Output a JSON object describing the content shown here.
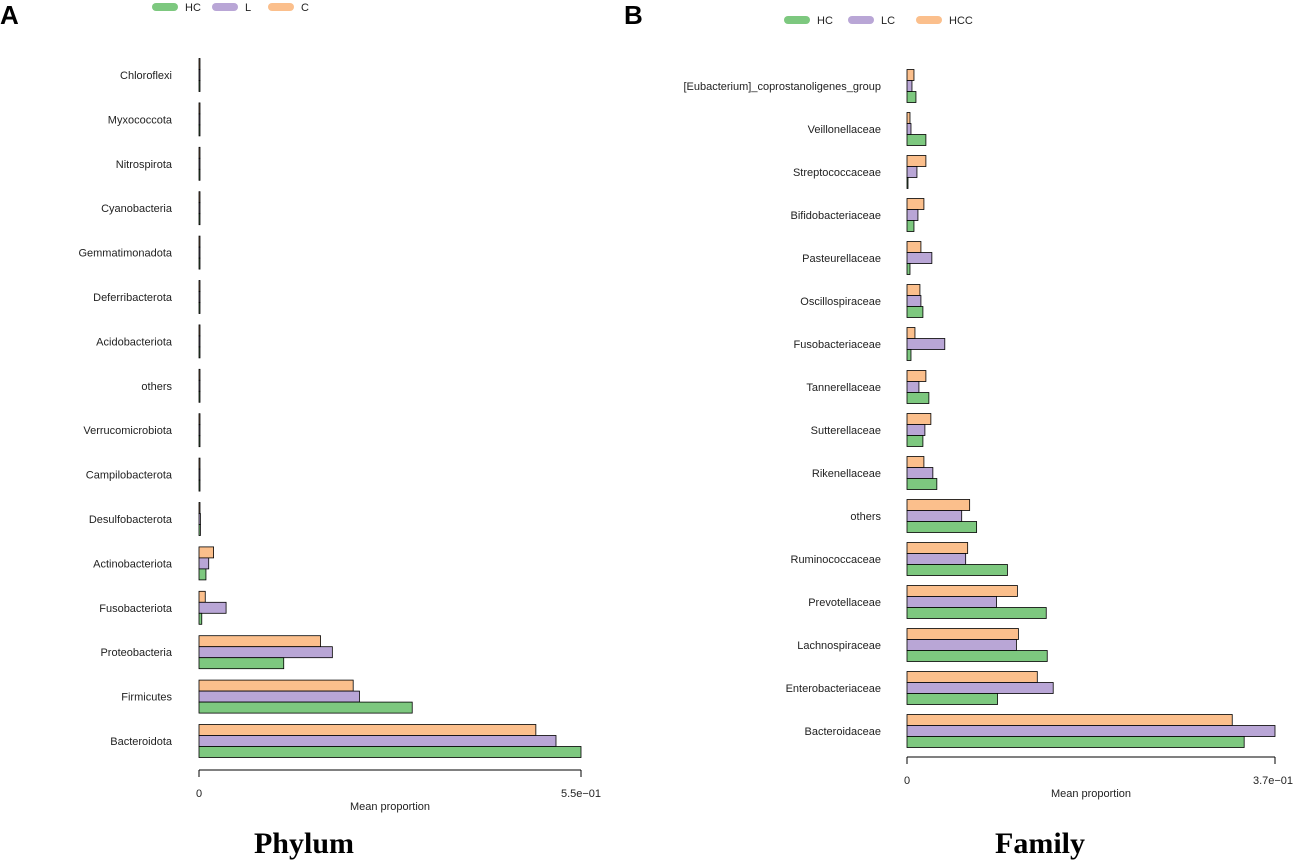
{
  "colors": {
    "c1": "#7dc87f",
    "c2": "#b9a6d6",
    "c3": "#fbbf8c",
    "axis": "#000000"
  },
  "chart_data": [
    {
      "type": "bar",
      "orientation": "horizontal",
      "panel_label": "A",
      "subtitle": "Phylum",
      "xlabel": "Mean proportion",
      "tick_labels": [
        "0",
        "5.5e−01"
      ],
      "xlim": [
        0,
        0.55
      ],
      "legend_position": "top",
      "series": [
        {
          "name": "HC",
          "color_key": "c1"
        },
        {
          "name": "L",
          "color_key": "c2"
        },
        {
          "name": "C",
          "color_key": "c3"
        }
      ],
      "categories": [
        "Chloroflexi",
        "Myxococcota",
        "Nitrospirota",
        "Cyanobacteria",
        "Gemmatimonadota",
        "Deferribacterota",
        "Acidobacteriota",
        "others",
        "Verrucomicrobiota",
        "Campilobacterota",
        "Desulfobacterota",
        "Actinobacteriota",
        "Fusobacteriota",
        "Proteobacteria",
        "Firmicutes",
        "Bacteroidota"
      ],
      "values": {
        "HC": [
          0.0001,
          0.0001,
          0.0001,
          0.0001,
          0.0001,
          0.0001,
          0.0001,
          0.0002,
          0.0003,
          0.0008,
          0.002,
          0.01,
          0.004,
          0.122,
          0.307,
          0.55
        ],
        "L": [
          0.0001,
          0.0001,
          0.0001,
          0.0001,
          0.0001,
          0.0001,
          0.0001,
          0.0002,
          0.0003,
          0.0008,
          0.002,
          0.014,
          0.039,
          0.192,
          0.231,
          0.514
        ],
        "C": [
          0.0001,
          0.0001,
          0.0001,
          0.0001,
          0.0001,
          0.0001,
          0.0001,
          0.0002,
          0.0003,
          0.0006,
          0.001,
          0.021,
          0.009,
          0.175,
          0.222,
          0.485
        ]
      }
    },
    {
      "type": "bar",
      "orientation": "horizontal",
      "panel_label": "B",
      "subtitle": "Family",
      "xlabel": "Mean proportion",
      "tick_labels": [
        "0",
        "3.7e−01"
      ],
      "xlim": [
        0,
        0.37
      ],
      "legend_position": "top",
      "series": [
        {
          "name": "HC",
          "color_key": "c1"
        },
        {
          "name": "LC",
          "color_key": "c2"
        },
        {
          "name": "HCC",
          "color_key": "c3"
        }
      ],
      "categories": [
        "[Eubacterium]_coprostanoligenes_group",
        "Veillonellaceae",
        "Streptococcaceae",
        "Bifidobacteriaceae",
        "Pasteurellaceae",
        "Oscillospiraceae",
        "Fusobacteriaceae",
        "Tannerellaceae",
        "Sutterellaceae",
        "Rikenellaceae",
        "others",
        "Ruminococcaceae",
        "Prevotellaceae",
        "Lachnospiraceae",
        "Enterobacteriaceae",
        "Bacteroidaceae"
      ],
      "values": {
        "HC": [
          0.009,
          0.019,
          0.001,
          0.007,
          0.003,
          0.016,
          0.004,
          0.022,
          0.016,
          0.03,
          0.07,
          0.101,
          0.14,
          0.141,
          0.091,
          0.339
        ],
        "LC": [
          0.005,
          0.004,
          0.01,
          0.011,
          0.025,
          0.014,
          0.038,
          0.012,
          0.018,
          0.026,
          0.055,
          0.059,
          0.09,
          0.11,
          0.147,
          0.37
        ],
        "HCC": [
          0.007,
          0.003,
          0.019,
          0.017,
          0.014,
          0.013,
          0.008,
          0.019,
          0.024,
          0.017,
          0.063,
          0.061,
          0.111,
          0.112,
          0.131,
          0.327
        ]
      }
    }
  ]
}
